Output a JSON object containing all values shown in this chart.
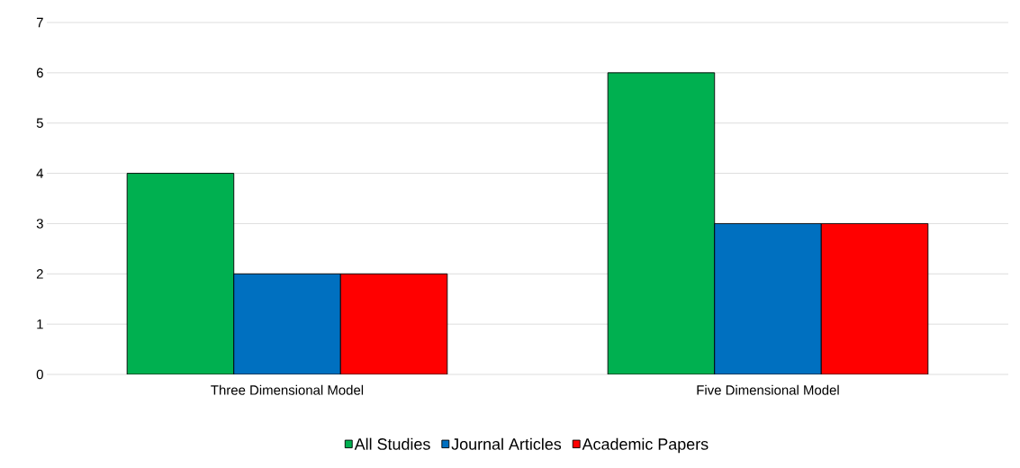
{
  "chart_data": {
    "type": "bar",
    "categories": [
      "Three Dimensional Model",
      "Five Dimensional Model"
    ],
    "series": [
      {
        "name": "All Studies",
        "color": "#00b050",
        "values": [
          4,
          6
        ]
      },
      {
        "name": "Journal Articles",
        "color": "#0070c0",
        "values": [
          2,
          3
        ]
      },
      {
        "name": "Academic Papers",
        "color": "#ff0000",
        "values": [
          2,
          3
        ]
      }
    ],
    "ylim": [
      0,
      7
    ],
    "yticks": [
      0,
      1,
      2,
      3,
      4,
      5,
      6,
      7
    ],
    "grid": "y",
    "legend": "bottom"
  }
}
